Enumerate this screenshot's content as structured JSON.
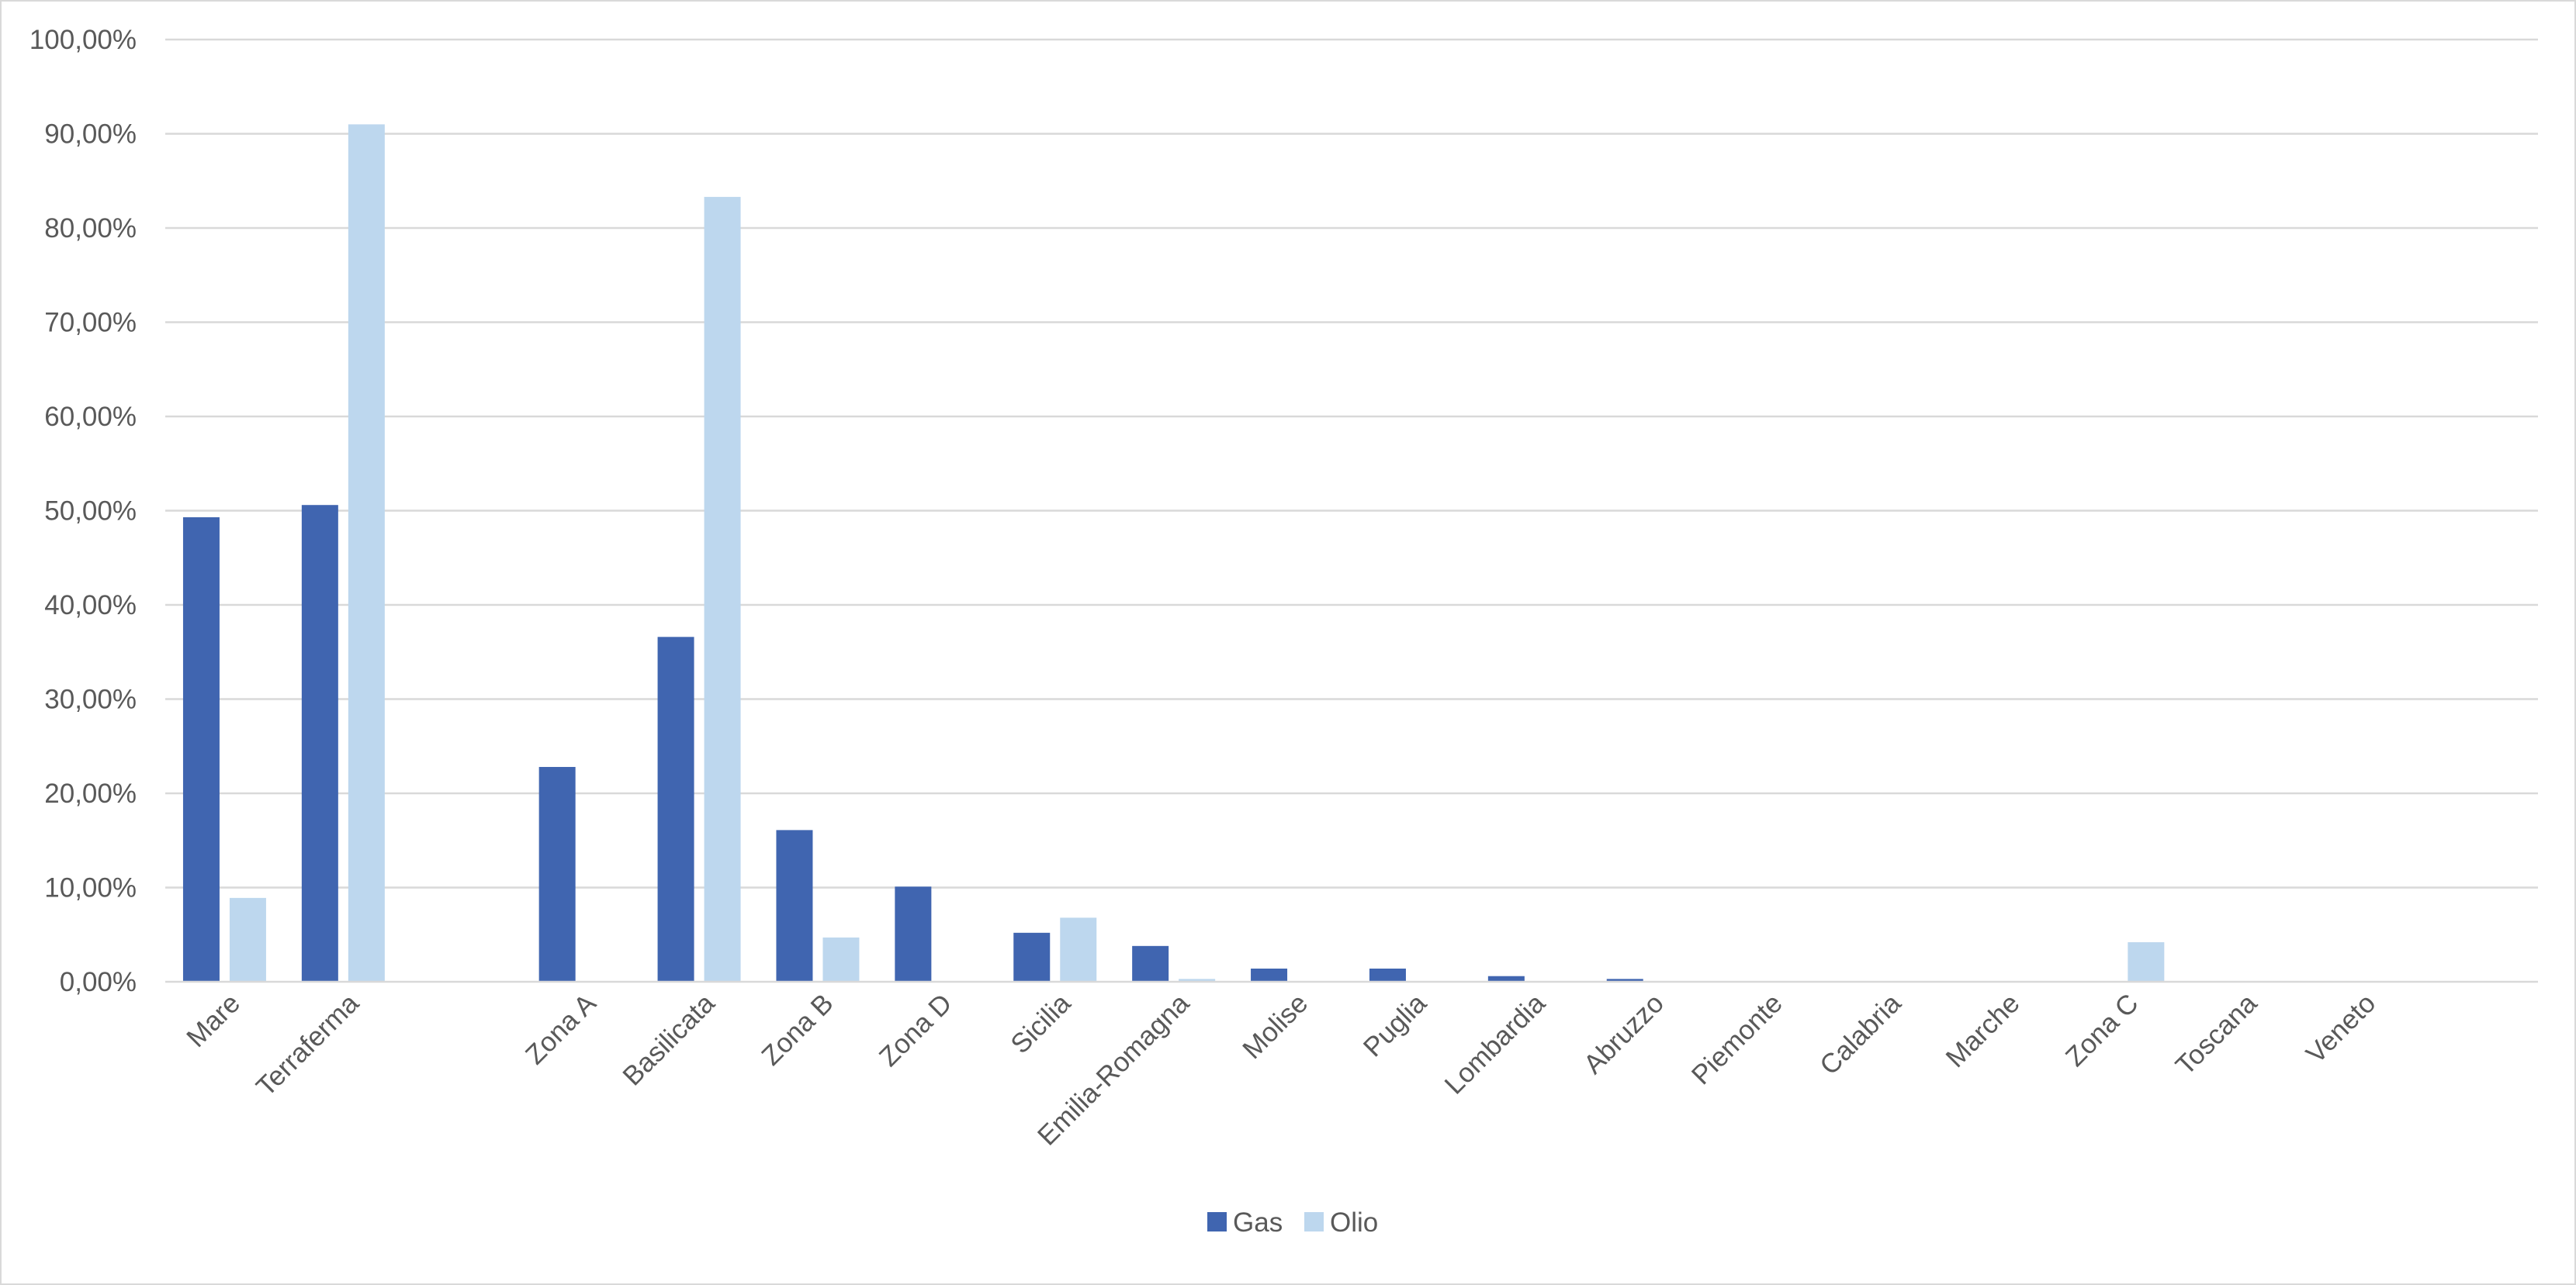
{
  "chart_data": {
    "type": "bar",
    "title": "",
    "xlabel": "",
    "ylabel": "",
    "ylim": [
      0,
      100
    ],
    "y_ticks": [
      "0,00%",
      "10,00%",
      "20,00%",
      "30,00%",
      "40,00%",
      "50,00%",
      "60,00%",
      "70,00%",
      "80,00%",
      "90,00%",
      "100,00%"
    ],
    "y_tick_values": [
      0,
      10,
      20,
      30,
      40,
      50,
      60,
      70,
      80,
      90,
      100
    ],
    "grid": true,
    "legend_position": "bottom",
    "categories": [
      "Mare",
      "Terraferma",
      "",
      "Zona A",
      "Basilicata",
      "Zona B",
      "Zona D",
      "Sicilia",
      "Emilia-Romagna",
      "Molise",
      "Puglia",
      "Lombardia",
      "Abruzzo",
      "Piemonte",
      "Calabria",
      "Marche",
      "Zona C",
      "Toscana",
      "Veneto",
      ""
    ],
    "series": [
      {
        "name": "Gas",
        "color": "#4065b0",
        "values": [
          49.3,
          50.6,
          0,
          22.8,
          36.6,
          16.1,
          10.1,
          5.2,
          3.8,
          1.4,
          1.4,
          0.6,
          0.3,
          0,
          0,
          0,
          0,
          0,
          0,
          0
        ]
      },
      {
        "name": "Olio",
        "color": "#bdd7ee",
        "values": [
          8.9,
          91.0,
          0,
          0,
          83.3,
          4.7,
          0,
          6.8,
          0.3,
          0,
          0,
          0,
          0,
          0,
          0,
          0,
          4.2,
          0,
          0,
          0
        ]
      }
    ]
  }
}
